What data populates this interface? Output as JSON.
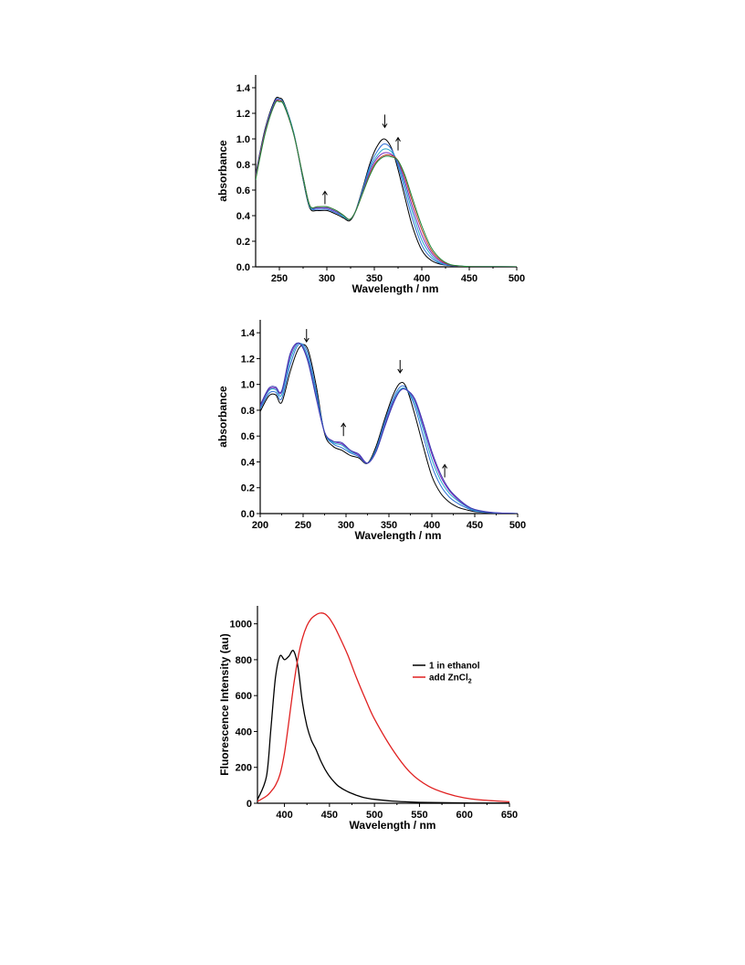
{
  "chart_data": [
    {
      "type": "line",
      "xlabel": "Wavelength / nm",
      "ylabel": "absorbance",
      "xlim": [
        225,
        500
      ],
      "ylim": [
        0,
        1.5
      ],
      "xticks": [
        250,
        300,
        350,
        400,
        450,
        500
      ],
      "yticks": [
        0.0,
        0.2,
        0.4,
        0.6,
        0.8,
        1.0,
        1.2,
        1.4
      ],
      "legend": "none",
      "grid": false,
      "arrows": [
        {
          "x": 298,
          "y": 0.49,
          "direction": "up"
        },
        {
          "x": 361,
          "y": 1.09,
          "direction": "down"
        },
        {
          "x": 375,
          "y": 0.91,
          "direction": "up"
        }
      ],
      "x": [
        225,
        235,
        245,
        250,
        255,
        265,
        275,
        282,
        290,
        300,
        310,
        318,
        324,
        330,
        338,
        345,
        352,
        360,
        368,
        375,
        382,
        390,
        400,
        410,
        420,
        430,
        440,
        450,
        470,
        500
      ],
      "series": [
        {
          "color": "#000000",
          "values": [
            0.72,
            1.08,
            1.3,
            1.32,
            1.28,
            1.05,
            0.68,
            0.46,
            0.44,
            0.44,
            0.41,
            0.38,
            0.36,
            0.43,
            0.62,
            0.8,
            0.93,
            1.0,
            0.93,
            0.76,
            0.55,
            0.32,
            0.13,
            0.05,
            0.02,
            0.01,
            0.004,
            0.002,
            0.001,
            0.0
          ]
        },
        {
          "color": "#2c6fd6",
          "values": [
            0.71,
            1.07,
            1.29,
            1.31,
            1.27,
            1.05,
            0.69,
            0.47,
            0.45,
            0.45,
            0.42,
            0.39,
            0.37,
            0.43,
            0.61,
            0.78,
            0.89,
            0.96,
            0.92,
            0.79,
            0.6,
            0.38,
            0.17,
            0.07,
            0.025,
            0.01,
            0.005,
            0.002,
            0.001,
            0.0
          ]
        },
        {
          "color": "#1fa7c9",
          "values": [
            0.7,
            1.06,
            1.28,
            1.3,
            1.27,
            1.05,
            0.69,
            0.47,
            0.46,
            0.46,
            0.43,
            0.39,
            0.37,
            0.43,
            0.6,
            0.76,
            0.86,
            0.92,
            0.9,
            0.81,
            0.64,
            0.43,
            0.21,
            0.09,
            0.03,
            0.012,
            0.005,
            0.002,
            0.001,
            0.0
          ]
        },
        {
          "color": "#7b2cbf",
          "values": [
            0.7,
            1.06,
            1.28,
            1.3,
            1.26,
            1.04,
            0.7,
            0.48,
            0.46,
            0.46,
            0.43,
            0.4,
            0.37,
            0.43,
            0.59,
            0.74,
            0.84,
            0.89,
            0.88,
            0.82,
            0.67,
            0.47,
            0.25,
            0.11,
            0.04,
            0.014,
            0.006,
            0.002,
            0.001,
            0.0
          ]
        },
        {
          "color": "#c0392b",
          "values": [
            0.69,
            1.05,
            1.27,
            1.3,
            1.26,
            1.04,
            0.7,
            0.48,
            0.47,
            0.47,
            0.44,
            0.4,
            0.37,
            0.43,
            0.58,
            0.72,
            0.82,
            0.87,
            0.87,
            0.83,
            0.7,
            0.51,
            0.29,
            0.13,
            0.05,
            0.016,
            0.006,
            0.002,
            0.001,
            0.0
          ]
        },
        {
          "color": "#1f8a3a",
          "values": [
            0.68,
            1.04,
            1.27,
            1.29,
            1.26,
            1.04,
            0.7,
            0.48,
            0.47,
            0.47,
            0.44,
            0.4,
            0.37,
            0.43,
            0.58,
            0.71,
            0.81,
            0.86,
            0.86,
            0.83,
            0.72,
            0.54,
            0.32,
            0.15,
            0.06,
            0.018,
            0.007,
            0.002,
            0.001,
            0.0
          ]
        }
      ]
    },
    {
      "type": "line",
      "xlabel": "Wavelength / nm",
      "ylabel": "absorbance",
      "xlim": [
        200,
        500
      ],
      "ylim": [
        0,
        1.5
      ],
      "xticks": [
        200,
        250,
        300,
        350,
        400,
        450,
        500
      ],
      "yticks": [
        0.0,
        0.2,
        0.4,
        0.6,
        0.8,
        1.0,
        1.2,
        1.4
      ],
      "legend": "none",
      "grid": false,
      "arrows": [
        {
          "x": 254,
          "y": 1.33,
          "direction": "down"
        },
        {
          "x": 297,
          "y": 0.6,
          "direction": "up"
        },
        {
          "x": 363,
          "y": 1.09,
          "direction": "down"
        },
        {
          "x": 415,
          "y": 0.28,
          "direction": "up"
        }
      ],
      "x": [
        200,
        210,
        218,
        225,
        235,
        245,
        255,
        265,
        275,
        285,
        295,
        305,
        315,
        325,
        335,
        345,
        355,
        363,
        370,
        380,
        390,
        400,
        410,
        420,
        430,
        440,
        450,
        470,
        500
      ],
      "series": [
        {
          "color": "#000000",
          "values": [
            0.79,
            0.91,
            0.92,
            0.86,
            1.1,
            1.28,
            1.28,
            1.0,
            0.62,
            0.52,
            0.49,
            0.45,
            0.43,
            0.39,
            0.52,
            0.73,
            0.92,
            1.01,
            0.98,
            0.77,
            0.52,
            0.29,
            0.16,
            0.09,
            0.05,
            0.03,
            0.015,
            0.005,
            0.0
          ]
        },
        {
          "color": "#2c6fd6",
          "values": [
            0.81,
            0.93,
            0.94,
            0.89,
            1.15,
            1.31,
            1.25,
            0.96,
            0.63,
            0.54,
            0.51,
            0.47,
            0.44,
            0.39,
            0.5,
            0.71,
            0.89,
            0.98,
            0.97,
            0.83,
            0.6,
            0.37,
            0.22,
            0.13,
            0.08,
            0.045,
            0.02,
            0.006,
            0.0
          ]
        },
        {
          "color": "#1fa7c9",
          "values": [
            0.82,
            0.95,
            0.96,
            0.92,
            1.19,
            1.32,
            1.22,
            0.93,
            0.63,
            0.55,
            0.53,
            0.48,
            0.45,
            0.39,
            0.49,
            0.69,
            0.87,
            0.96,
            0.96,
            0.86,
            0.65,
            0.42,
            0.26,
            0.16,
            0.1,
            0.055,
            0.025,
            0.007,
            0.0
          ]
        },
        {
          "color": "#7b2cbf",
          "values": [
            0.83,
            0.96,
            0.97,
            0.94,
            1.22,
            1.32,
            1.2,
            0.91,
            0.63,
            0.56,
            0.54,
            0.49,
            0.45,
            0.39,
            0.48,
            0.68,
            0.86,
            0.95,
            0.96,
            0.88,
            0.68,
            0.46,
            0.29,
            0.18,
            0.11,
            0.06,
            0.03,
            0.008,
            0.0
          ]
        },
        {
          "color": "#3b3bb0",
          "values": [
            0.84,
            0.97,
            0.98,
            0.95,
            1.24,
            1.32,
            1.19,
            0.9,
            0.63,
            0.56,
            0.55,
            0.49,
            0.46,
            0.39,
            0.48,
            0.67,
            0.85,
            0.95,
            0.96,
            0.89,
            0.7,
            0.48,
            0.31,
            0.19,
            0.12,
            0.065,
            0.032,
            0.009,
            0.0
          ]
        }
      ]
    },
    {
      "type": "line",
      "xlabel": "Wavelength / nm",
      "ylabel": "Fluorescence Intensity (au)",
      "xlim": [
        370,
        650
      ],
      "ylim": [
        0,
        1100
      ],
      "xticks": [
        400,
        450,
        500,
        550,
        600,
        650
      ],
      "yticks": [
        0,
        200,
        400,
        600,
        800,
        1000
      ],
      "legend": "top-right",
      "grid": false,
      "x": [
        370,
        380,
        385,
        390,
        395,
        400,
        405,
        410,
        415,
        420,
        425,
        430,
        435,
        440,
        445,
        450,
        455,
        460,
        470,
        480,
        490,
        500,
        520,
        540,
        560,
        580,
        600,
        620,
        650
      ],
      "series": [
        {
          "name": "1 in ethanol",
          "color": "#000000",
          "values": [
            20,
            150,
            420,
            700,
            820,
            800,
            820,
            850,
            760,
            560,
            430,
            350,
            300,
            240,
            190,
            150,
            120,
            95,
            65,
            45,
            30,
            22,
            12,
            7,
            4,
            3,
            2,
            1,
            1
          ]
        },
        {
          "name_main": "add ZnCl",
          "name_sub": "2",
          "color": "#e02020",
          "values": [
            10,
            40,
            65,
            100,
            160,
            280,
            460,
            650,
            810,
            920,
            990,
            1030,
            1050,
            1060,
            1055,
            1030,
            990,
            940,
            830,
            700,
            580,
            470,
            300,
            170,
            95,
            55,
            30,
            18,
            8
          ]
        }
      ]
    }
  ]
}
